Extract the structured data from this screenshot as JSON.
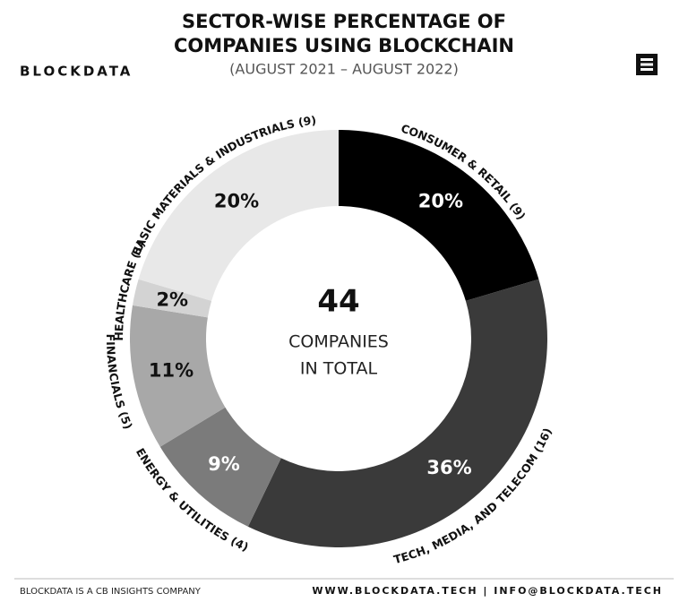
{
  "brand": "BLOCKDATA",
  "chart_data": {
    "type": "donut",
    "title": [
      "SECTOR-WISE PERCENTAGE OF",
      "COMPANIES USING BLOCKCHAIN"
    ],
    "subtitle": "(AUGUST 2021 – AUGUST 2022)",
    "categories": [
      "CONSUMER & RETAIL (9)",
      "TECH, MEDIA, AND TELECOM (16)",
      "ENERGY & UTILITIES (4)",
      "FINANCIALS (5)",
      "HEALTHCARE (1)",
      "BASIC MATERIALS & INDUSTRIALS (9)"
    ],
    "values": [
      20,
      36,
      9,
      11,
      2,
      20
    ],
    "value_labels": [
      "20%",
      "36%",
      "9%",
      "11%",
      "2%",
      "20%"
    ],
    "colors": [
      "#000000",
      "#3a3a3a",
      "#7b7b7b",
      "#a8a8a8",
      "#d3d3d3",
      "#e8e8e8"
    ],
    "center_value": 44,
    "center_text": [
      "COMPANIES",
      "IN TOTAL"
    ]
  },
  "footer": {
    "left": "BLOCKDATA IS A CB INSIGHTS COMPANY",
    "right": "WWW.BLOCKDATA.TECH | INFO@BLOCKDATA.TECH"
  }
}
